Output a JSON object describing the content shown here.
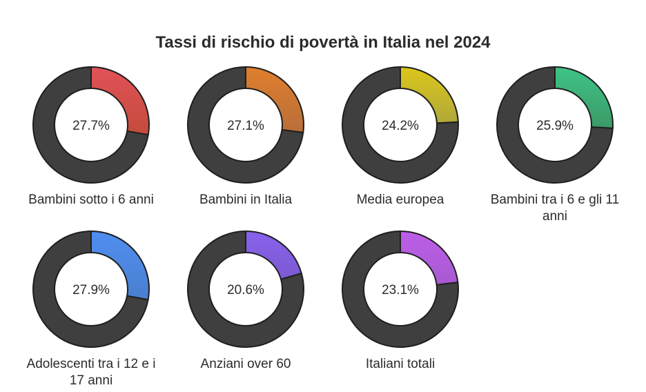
{
  "chart_data": {
    "type": "pie",
    "title": "Tassi di rischio di povertà in Italia nel 2024",
    "unit": "%",
    "remainder_color": "#3f3f3f",
    "items": [
      {
        "label": "Bambini sotto i 6 anni",
        "label_lines": [
          "Bambini sotto i 6 anni"
        ],
        "value": 27.7,
        "value_text": "27.7%",
        "color": "#e15258",
        "color_dark": "#c44b3c"
      },
      {
        "label": "Bambini in Italia",
        "label_lines": [
          "Bambini in Italia"
        ],
        "value": 27.1,
        "value_text": "27.1%",
        "color": "#e07f2d",
        "color_dark": "#b86e3a"
      },
      {
        "label": "Media europea",
        "label_lines": [
          "Media europea"
        ],
        "value": 24.2,
        "value_text": "24.2%",
        "color": "#dcc71a",
        "color_dark": "#b0a83a"
      },
      {
        "label": "Bambini tra i 6 e gli 11 anni",
        "label_lines": [
          "Bambini tra i 6 e gli 11",
          "anni"
        ],
        "value": 25.9,
        "value_text": "25.9%",
        "color": "#3fc486",
        "color_dark": "#3b9a68"
      },
      {
        "label": "Adolescenti tra i 12 e i 17 anni",
        "label_lines": [
          "Adolescenti tra i 12 e i",
          "17 anni"
        ],
        "value": 27.9,
        "value_text": "27.9%",
        "color": "#4f8ef0",
        "color_dark": "#4a7fcf"
      },
      {
        "label": "Anziani over 60",
        "label_lines": [
          "Anziani over 60"
        ],
        "value": 20.6,
        "value_text": "20.6%",
        "color": "#8a62ee",
        "color_dark": "#7a5ad0"
      },
      {
        "label": "Italiani totali",
        "label_lines": [
          "Italiani totali"
        ],
        "value": 23.1,
        "value_text": "23.1%",
        "color": "#bd5ee8",
        "color_dark": "#a85ad2"
      }
    ]
  }
}
